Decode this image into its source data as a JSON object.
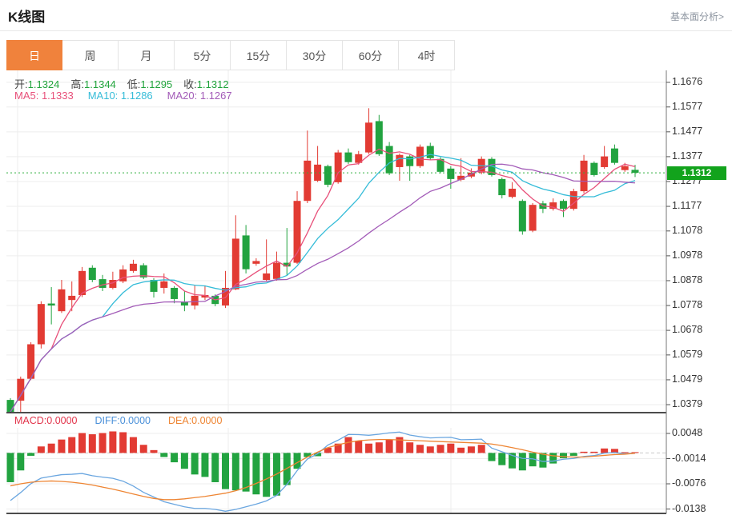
{
  "header": {
    "title": "K线图",
    "link": "基本面分析>"
  },
  "tabs": [
    {
      "label": "日",
      "active": true
    },
    {
      "label": "周",
      "active": false
    },
    {
      "label": "月",
      "active": false
    },
    {
      "label": "5分",
      "active": false
    },
    {
      "label": "15分",
      "active": false
    },
    {
      "label": "30分",
      "active": false
    },
    {
      "label": "60分",
      "active": false
    },
    {
      "label": "4时",
      "active": false
    }
  ],
  "quote": {
    "items": [
      {
        "name": "open",
        "label": "开:",
        "value": "1.1324"
      },
      {
        "name": "high",
        "label": "高:",
        "value": "1.1344"
      },
      {
        "name": "low",
        "label": "低:",
        "value": "1.1295"
      },
      {
        "name": "close",
        "label": "收:",
        "value": "1.1312"
      }
    ]
  },
  "ma_legend": [
    {
      "name": "ma5",
      "label": "MA5:",
      "value": "1.1333",
      "color": "#e8507a"
    },
    {
      "name": "ma10",
      "label": "MA10:",
      "value": "1.1286",
      "color": "#35bcd8"
    },
    {
      "name": "ma20",
      "label": "MA20:",
      "value": "1.1267",
      "color": "#a35cb8"
    }
  ],
  "macd_legend": [
    {
      "name": "macd",
      "label": "MACD:",
      "value": "0.0000",
      "color": "#e2334a"
    },
    {
      "name": "diff",
      "label": "DIFF:",
      "value": "0.0000",
      "color": "#4a90d9"
    },
    {
      "name": "dea",
      "label": "DEA:",
      "value": "0.0000",
      "color": "#ee8533"
    }
  ],
  "chart_data": {
    "type": "candlestick",
    "panels": [
      "price",
      "macd"
    ],
    "current_price": 1.1312,
    "current_price_label": "1.1312",
    "y_ticks_price": [
      1.1676,
      1.1577,
      1.1477,
      1.1377,
      1.1277,
      1.1177,
      1.1078,
      1.0978,
      1.0878,
      1.0778,
      1.0678,
      1.0579,
      1.0479,
      1.0379
    ],
    "y_ticks_macd": [
      0.0048,
      -0.0014,
      -0.0076,
      -0.0138
    ],
    "ma_periods": [
      5,
      10,
      20
    ],
    "candles_ohlc": [
      [
        1.0398,
        1.0405,
        1.0337,
        1.035
      ],
      [
        1.0395,
        1.0492,
        1.034,
        1.0483
      ],
      [
        1.0483,
        1.063,
        1.0478,
        1.0622
      ],
      [
        1.0622,
        1.0795,
        1.0605,
        1.0784
      ],
      [
        1.0786,
        1.0852,
        1.0702,
        1.0778
      ],
      [
        1.0755,
        1.0881,
        1.0748,
        1.0843
      ],
      [
        1.08,
        1.0875,
        1.0755,
        1.0817
      ],
      [
        1.082,
        1.0933,
        1.0812,
        1.0917
      ],
      [
        1.093,
        1.094,
        1.0872,
        1.0881
      ],
      [
        1.0884,
        1.0901,
        1.0836,
        1.0849
      ],
      [
        1.0849,
        1.0914,
        1.0843,
        1.0881
      ],
      [
        1.0875,
        1.094,
        1.0868,
        1.0923
      ],
      [
        1.0917,
        1.0962,
        1.091,
        1.0946
      ],
      [
        1.094,
        1.0948,
        1.0884,
        1.0891
      ],
      [
        1.0881,
        1.0888,
        1.081,
        1.0833
      ],
      [
        1.0849,
        1.0907,
        1.0826,
        1.0875
      ],
      [
        1.0849,
        1.0856,
        1.0787,
        1.0804
      ],
      [
        1.0794,
        1.0836,
        1.0755,
        1.0778
      ],
      [
        1.0778,
        1.0859,
        1.0762,
        1.0817
      ],
      [
        1.081,
        1.0859,
        1.08,
        1.082
      ],
      [
        1.0817,
        1.0823,
        1.0775,
        1.0784
      ],
      [
        1.0778,
        1.0917,
        1.0768,
        1.0849
      ],
      [
        1.0843,
        1.1141,
        1.084,
        1.1047
      ],
      [
        1.106,
        1.1102,
        1.0907,
        1.0924
      ],
      [
        1.0946,
        1.0968,
        1.0938,
        1.0957
      ],
      [
        1.0881,
        1.1044,
        1.0875,
        1.0907
      ],
      [
        1.0885,
        1.0995,
        1.0878,
        1.095
      ],
      [
        1.095,
        1.109,
        1.09,
        1.0935
      ],
      [
        1.095,
        1.1238,
        1.0945,
        1.1199
      ],
      [
        1.1199,
        1.1482,
        1.119,
        1.1361
      ],
      [
        1.128,
        1.142,
        1.1275,
        1.1345
      ],
      [
        1.1339,
        1.1345,
        1.1254,
        1.1264
      ],
      [
        1.1274,
        1.1404,
        1.1268,
        1.1394
      ],
      [
        1.1394,
        1.141,
        1.1348,
        1.1355
      ],
      [
        1.1352,
        1.14,
        1.1345,
        1.1387
      ],
      [
        1.1394,
        1.1572,
        1.1388,
        1.1514
      ],
      [
        1.152,
        1.1545,
        1.138,
        1.1387
      ],
      [
        1.142,
        1.1436,
        1.1303,
        1.131
      ],
      [
        1.1335,
        1.139,
        1.128,
        1.1384
      ],
      [
        1.1378,
        1.1384,
        1.128,
        1.1339
      ],
      [
        1.1339,
        1.1426,
        1.1332,
        1.1417
      ],
      [
        1.142,
        1.1433,
        1.1365,
        1.1371
      ],
      [
        1.1368,
        1.1375,
        1.131,
        1.1316
      ],
      [
        1.1329,
        1.1339,
        1.1248,
        1.1287
      ],
      [
        1.1284,
        1.1371,
        1.1278,
        1.13
      ],
      [
        1.1297,
        1.133,
        1.129,
        1.1313
      ],
      [
        1.1313,
        1.1378,
        1.1306,
        1.1368
      ],
      [
        1.1368,
        1.1375,
        1.1297,
        1.1303
      ],
      [
        1.1287,
        1.1293,
        1.1209,
        1.1222
      ],
      [
        1.1215,
        1.1274,
        1.1209,
        1.1248
      ],
      [
        1.1199,
        1.1205,
        1.1063,
        1.1076
      ],
      [
        1.1079,
        1.119,
        1.1073,
        1.1183
      ],
      [
        1.1189,
        1.1199,
        1.115,
        1.1167
      ],
      [
        1.1167,
        1.1209,
        1.116,
        1.1193
      ],
      [
        1.1199,
        1.1205,
        1.1134,
        1.1167
      ],
      [
        1.1167,
        1.1248,
        1.116,
        1.1238
      ],
      [
        1.1238,
        1.1384,
        1.123,
        1.1361
      ],
      [
        1.1352,
        1.1358,
        1.1297,
        1.1303
      ],
      [
        1.1335,
        1.142,
        1.1328,
        1.1378
      ],
      [
        1.141,
        1.1426,
        1.1345,
        1.1352
      ],
      [
        1.1323,
        1.1352,
        1.1316,
        1.1339
      ],
      [
        1.1324,
        1.1344,
        1.1295,
        1.1312
      ]
    ],
    "macd_hist": [
      -0.0072,
      -0.0043,
      -0.0007,
      0.0016,
      0.0023,
      0.0033,
      0.0039,
      0.0049,
      0.0046,
      0.0049,
      0.0053,
      0.0051,
      0.0039,
      0.002,
      0.0007,
      -0.001,
      -0.0023,
      -0.0039,
      -0.0053,
      -0.0059,
      -0.0072,
      -0.0089,
      -0.0092,
      -0.0095,
      -0.0102,
      -0.0108,
      -0.0105,
      -0.0079,
      -0.0039,
      -0.001,
      -0.0008,
      0.0013,
      0.0023,
      0.0039,
      0.003,
      0.0023,
      0.0026,
      0.0033,
      0.0039,
      0.0026,
      0.002,
      0.0016,
      0.002,
      0.0023,
      0.0013,
      0.0016,
      0.002,
      -0.002,
      -0.003,
      -0.0038,
      -0.0043,
      -0.0033,
      -0.0036,
      -0.0026,
      -0.0013,
      -0.0007,
      0.0003,
      0.0003,
      0.0011,
      0.001,
      0.0002,
      0.0
    ],
    "macd_dea": [
      -0.0081,
      -0.0076,
      -0.0072,
      -0.007,
      -0.0069,
      -0.007,
      -0.0072,
      -0.0075,
      -0.0079,
      -0.0084,
      -0.0089,
      -0.0095,
      -0.0101,
      -0.0107,
      -0.0112,
      -0.0115,
      -0.0115,
      -0.0113,
      -0.011,
      -0.0107,
      -0.0103,
      -0.0099,
      -0.0093,
      -0.0085,
      -0.0075,
      -0.0064,
      -0.0052,
      -0.0038,
      -0.0024,
      -0.001,
      0.0002,
      0.0013,
      0.002,
      0.0026,
      0.003,
      0.0032,
      0.0033,
      0.0033,
      0.0032,
      0.0031,
      0.003,
      0.0029,
      0.0028,
      0.0027,
      0.0026,
      0.0025,
      0.0024,
      0.0022,
      0.0018,
      0.0013,
      0.0008,
      0.0002,
      -0.0003,
      -0.0007,
      -0.0009,
      -0.001,
      -0.001,
      -0.0008,
      -0.0006,
      -0.0004,
      -0.0003,
      -0.0001
    ],
    "colors": {
      "up": "#e23b33",
      "down": "#22a340",
      "ma5": "#e8507a",
      "ma10": "#35bcd8",
      "ma20": "#a35cb8",
      "diff": "#6aa6e0",
      "dea": "#ee8533",
      "price_line": "#2fae3c",
      "badge": "#12a31c",
      "grid": "#ededed",
      "zero_dash": "#c9c9c9"
    }
  }
}
